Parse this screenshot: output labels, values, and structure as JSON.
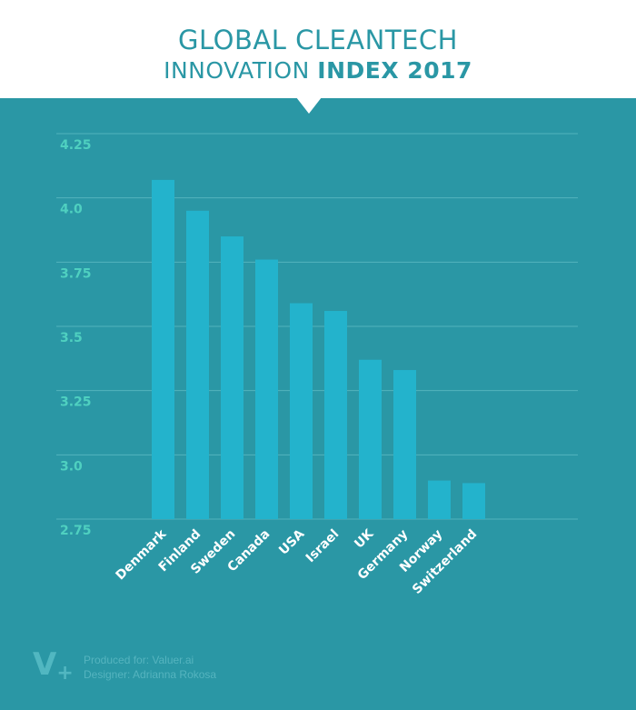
{
  "header": {
    "title_line1": "GLOBAL CLEANTECH",
    "title_line2_light": "INNOVATION ",
    "title_line2_bold": "INDEX 2017"
  },
  "colors": {
    "background": "#2a97a5",
    "bar": "#23b3cc",
    "tick_label": "#4fd0c0",
    "grid": "#53b3bd",
    "header": "#ffffff"
  },
  "chart_data": {
    "type": "bar",
    "title": "GLOBAL CLEANTECH INNOVATION INDEX 2017",
    "xlabel": "",
    "ylabel": "",
    "categories": [
      "Denmark",
      "Finland",
      "Sweden",
      "Canada",
      "USA",
      "Israel",
      "UK",
      "Germany",
      "Norway",
      "Switzerland"
    ],
    "values": [
      4.07,
      3.95,
      3.85,
      3.76,
      3.59,
      3.56,
      3.37,
      3.33,
      2.9,
      2.89
    ],
    "ylim": [
      2.75,
      4.25
    ],
    "yticks": [
      2.75,
      3.0,
      3.25,
      3.5,
      3.75,
      4.0,
      4.25
    ],
    "ytick_labels": [
      "2.75",
      "3.0",
      "3.25",
      "3.5",
      "3.75",
      "4.0",
      "4.25"
    ],
    "grid": true,
    "legend": "none"
  },
  "footer": {
    "logo_text": "V",
    "logo_plus": "+",
    "produced_for": "Produced for: Valuer.ai",
    "designer": "Designer: Adrianna Rokosa"
  }
}
